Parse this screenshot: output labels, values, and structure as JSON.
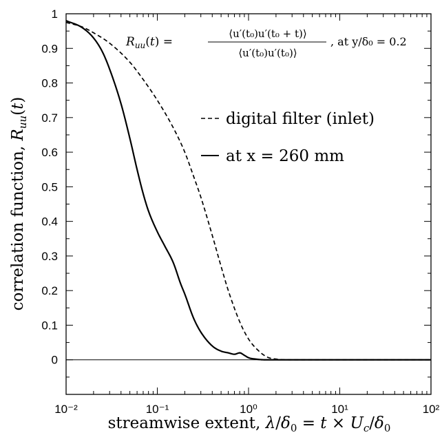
{
  "chart_data": {
    "type": "line",
    "xscale": "log",
    "xlim": [
      0.01,
      100
    ],
    "ylim": [
      -0.1,
      1.0
    ],
    "grid": false,
    "zero_line": true,
    "xlabel": "streamwise extent, λ/δ₀ = t × U_c/δ₀",
    "ylabel": "correlation function, R_uu(t)",
    "annotation": "R_uu(t) = ⟨u′(t₀)u′(t₀ + t)⟩ / ⟨u′(t₀)u′(t₀)⟩, at y/δ₀ = 0.2",
    "legend_position": "upper-right, inside plot",
    "x_tick_labels": [
      "10⁻²",
      "10⁻¹",
      "10⁰",
      "10¹",
      "10²"
    ],
    "y_tick_labels": [
      "0",
      "0.1",
      "0.2",
      "0.3",
      "0.4",
      "0.5",
      "0.6",
      "0.7",
      "0.8",
      "0.9",
      "1"
    ],
    "series": [
      {
        "name": "digital filter (inlet)",
        "style": "dashed",
        "color": "#000000",
        "x": [
          0.01,
          0.015,
          0.02,
          0.03,
          0.05,
          0.07,
          0.1,
          0.15,
          0.2,
          0.25,
          0.3,
          0.4,
          0.5,
          0.6,
          0.8,
          1.0,
          1.3,
          1.6,
          2.0,
          3.0,
          5.0,
          10.0,
          30.0,
          100.0
        ],
        "values": [
          0.975,
          0.962,
          0.945,
          0.915,
          0.86,
          0.81,
          0.75,
          0.67,
          0.6,
          0.53,
          0.47,
          0.36,
          0.27,
          0.2,
          0.11,
          0.06,
          0.025,
          0.008,
          0.002,
          0.0,
          0.0,
          0.0,
          0.0,
          0.0
        ]
      },
      {
        "name": "at x = 260 mm",
        "style": "solid",
        "color": "#000000",
        "x": [
          0.01,
          0.015,
          0.02,
          0.025,
          0.03,
          0.04,
          0.05,
          0.06,
          0.07,
          0.08,
          0.1,
          0.12,
          0.15,
          0.18,
          0.2,
          0.25,
          0.3,
          0.4,
          0.5,
          0.6,
          0.7,
          0.8,
          0.9,
          1.0,
          1.2,
          1.5,
          2.0,
          3.0,
          5.0,
          10.0,
          30.0,
          100.0
        ],
        "values": [
          0.98,
          0.96,
          0.93,
          0.89,
          0.84,
          0.74,
          0.64,
          0.55,
          0.48,
          0.43,
          0.37,
          0.33,
          0.28,
          0.22,
          0.19,
          0.12,
          0.08,
          0.04,
          0.025,
          0.02,
          0.016,
          0.02,
          0.013,
          0.006,
          0.002,
          0.0,
          0.0,
          0.0,
          0.0,
          0.0,
          0.0,
          0.0
        ]
      }
    ]
  }
}
